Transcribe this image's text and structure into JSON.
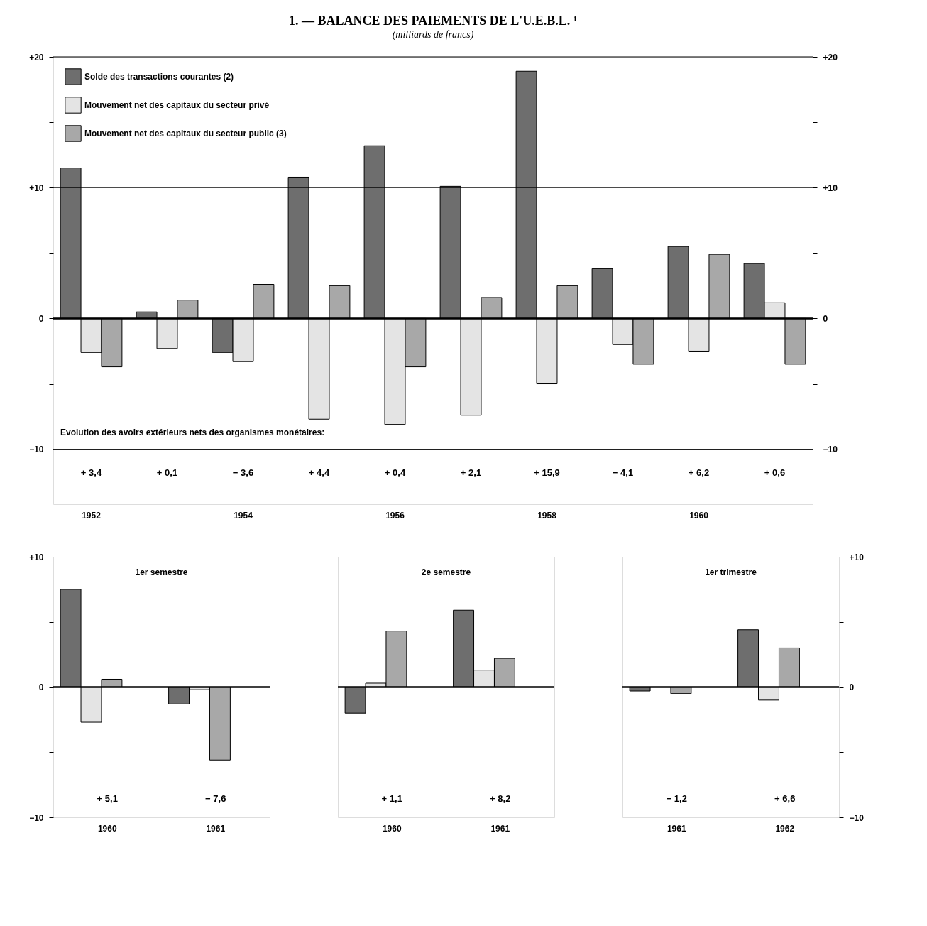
{
  "chart_data": [
    {
      "type": "bar",
      "title": "1. — BALANCE DES PAIEMENTS DE L'U.E.B.L. ¹",
      "subtitle": "(milliards de francs)",
      "categories": [
        "1952",
        null,
        "1954",
        null,
        "1956",
        null,
        "1958",
        null,
        "1960",
        null
      ],
      "series": [
        {
          "name": "Solde des transactions courantes (2)",
          "color": "#6e6e6e",
          "values": [
            11.5,
            0.5,
            -2.6,
            10.8,
            13.2,
            10.1,
            18.9,
            3.8,
            5.5,
            4.2
          ]
        },
        {
          "name": "Mouvement net des capitaux du secteur privé",
          "color": "#e4e4e4",
          "values": [
            -2.6,
            -2.3,
            -3.3,
            -7.7,
            -8.1,
            -7.4,
            -5.0,
            -2.0,
            -2.5,
            1.2
          ]
        },
        {
          "name": "Mouvement net des capitaux du secteur public (3)",
          "color": "#a8a8a8",
          "values": [
            -3.7,
            1.4,
            2.6,
            2.5,
            -3.7,
            1.6,
            2.5,
            -3.5,
            4.9,
            -3.5
          ]
        }
      ],
      "ylim": [
        -14.2,
        20
      ],
      "yticks": [
        {
          "value": -10,
          "label": "−10"
        },
        {
          "value": -5,
          "label": null
        },
        0,
        {
          "value": 5,
          "label": null
        },
        {
          "value": 10,
          "label": "+10"
        },
        {
          "value": 15,
          "label": null
        },
        {
          "value": 20,
          "label": "+20"
        }
      ],
      "y2lim": [
        -14.2,
        20
      ],
      "y2ticks": [
        {
          "value": -10,
          "label": "−10"
        },
        {
          "value": -5,
          "label": null
        },
        0,
        {
          "value": 5,
          "label": null
        },
        {
          "value": 10,
          "label": "+10"
        },
        {
          "value": 15,
          "label": null
        },
        {
          "value": 20,
          "label": "+20"
        }
      ],
      "grid": "y",
      "legend": "top left",
      "annotations": [
        "Evolution des avoirs extérieurs nets des organismes monétaires:",
        "+ 3,4",
        "+ 0,1",
        "− 3,6",
        "+ 4,4",
        "+ 0,4",
        "+ 2,1",
        "+ 15,9",
        "− 4,1",
        "+ 6,2",
        "+ 0,6"
      ]
    },
    {
      "type": "bar",
      "title": "1er semestre",
      "categories": [
        "1960",
        "1961"
      ],
      "series": [
        {
          "color": "#6e6e6e",
          "values": [
            7.5,
            -1.3
          ]
        },
        {
          "color": "#e4e4e4",
          "values": [
            -2.7,
            -0.2
          ]
        },
        {
          "color": "#a8a8a8",
          "values": [
            0.6,
            -5.6
          ]
        }
      ],
      "ylim": [
        -10,
        10
      ],
      "yticks": [
        {
          "value": -10,
          "label": "−10"
        },
        {
          "value": -5,
          "label": null
        },
        0,
        {
          "value": 5,
          "label": null
        },
        {
          "value": 10,
          "label": "+10"
        }
      ],
      "annotations": [
        "+ 5,1",
        "− 7,6"
      ]
    },
    {
      "type": "bar",
      "title": "2e semestre",
      "categories": [
        "1960",
        "1961"
      ],
      "series": [
        {
          "color": "#6e6e6e",
          "values": [
            -2.0,
            5.9
          ]
        },
        {
          "color": "#e4e4e4",
          "values": [
            0.3,
            1.3
          ]
        },
        {
          "color": "#a8a8a8",
          "values": [
            4.3,
            2.2
          ]
        }
      ],
      "ylim": [
        -10,
        10
      ],
      "tick_labels": "x",
      "annotations": [
        "+ 1,1",
        "+ 8,2"
      ]
    },
    {
      "type": "bar",
      "title": "1er trimestre",
      "categories": [
        "1961",
        "1962"
      ],
      "series": [
        {
          "color": "#6e6e6e",
          "values": [
            -0.3,
            4.4
          ],
          "axis": "y2"
        },
        {
          "color": "#e4e4e4",
          "values": [
            null,
            -1.0
          ],
          "axis": "y2"
        },
        {
          "color": "#a8a8a8",
          "values": [
            -0.5,
            3.0
          ],
          "axis": "y2"
        }
      ],
      "y2lim": [
        -10,
        10
      ],
      "y2ticks": [
        {
          "value": -10,
          "label": "−10"
        },
        {
          "value": -5,
          "label": null
        },
        0,
        {
          "value": 5,
          "label": null
        },
        {
          "value": 10,
          "label": "+10"
        }
      ],
      "annotations": [
        "− 1,2",
        "+ 6,6"
      ]
    }
  ]
}
